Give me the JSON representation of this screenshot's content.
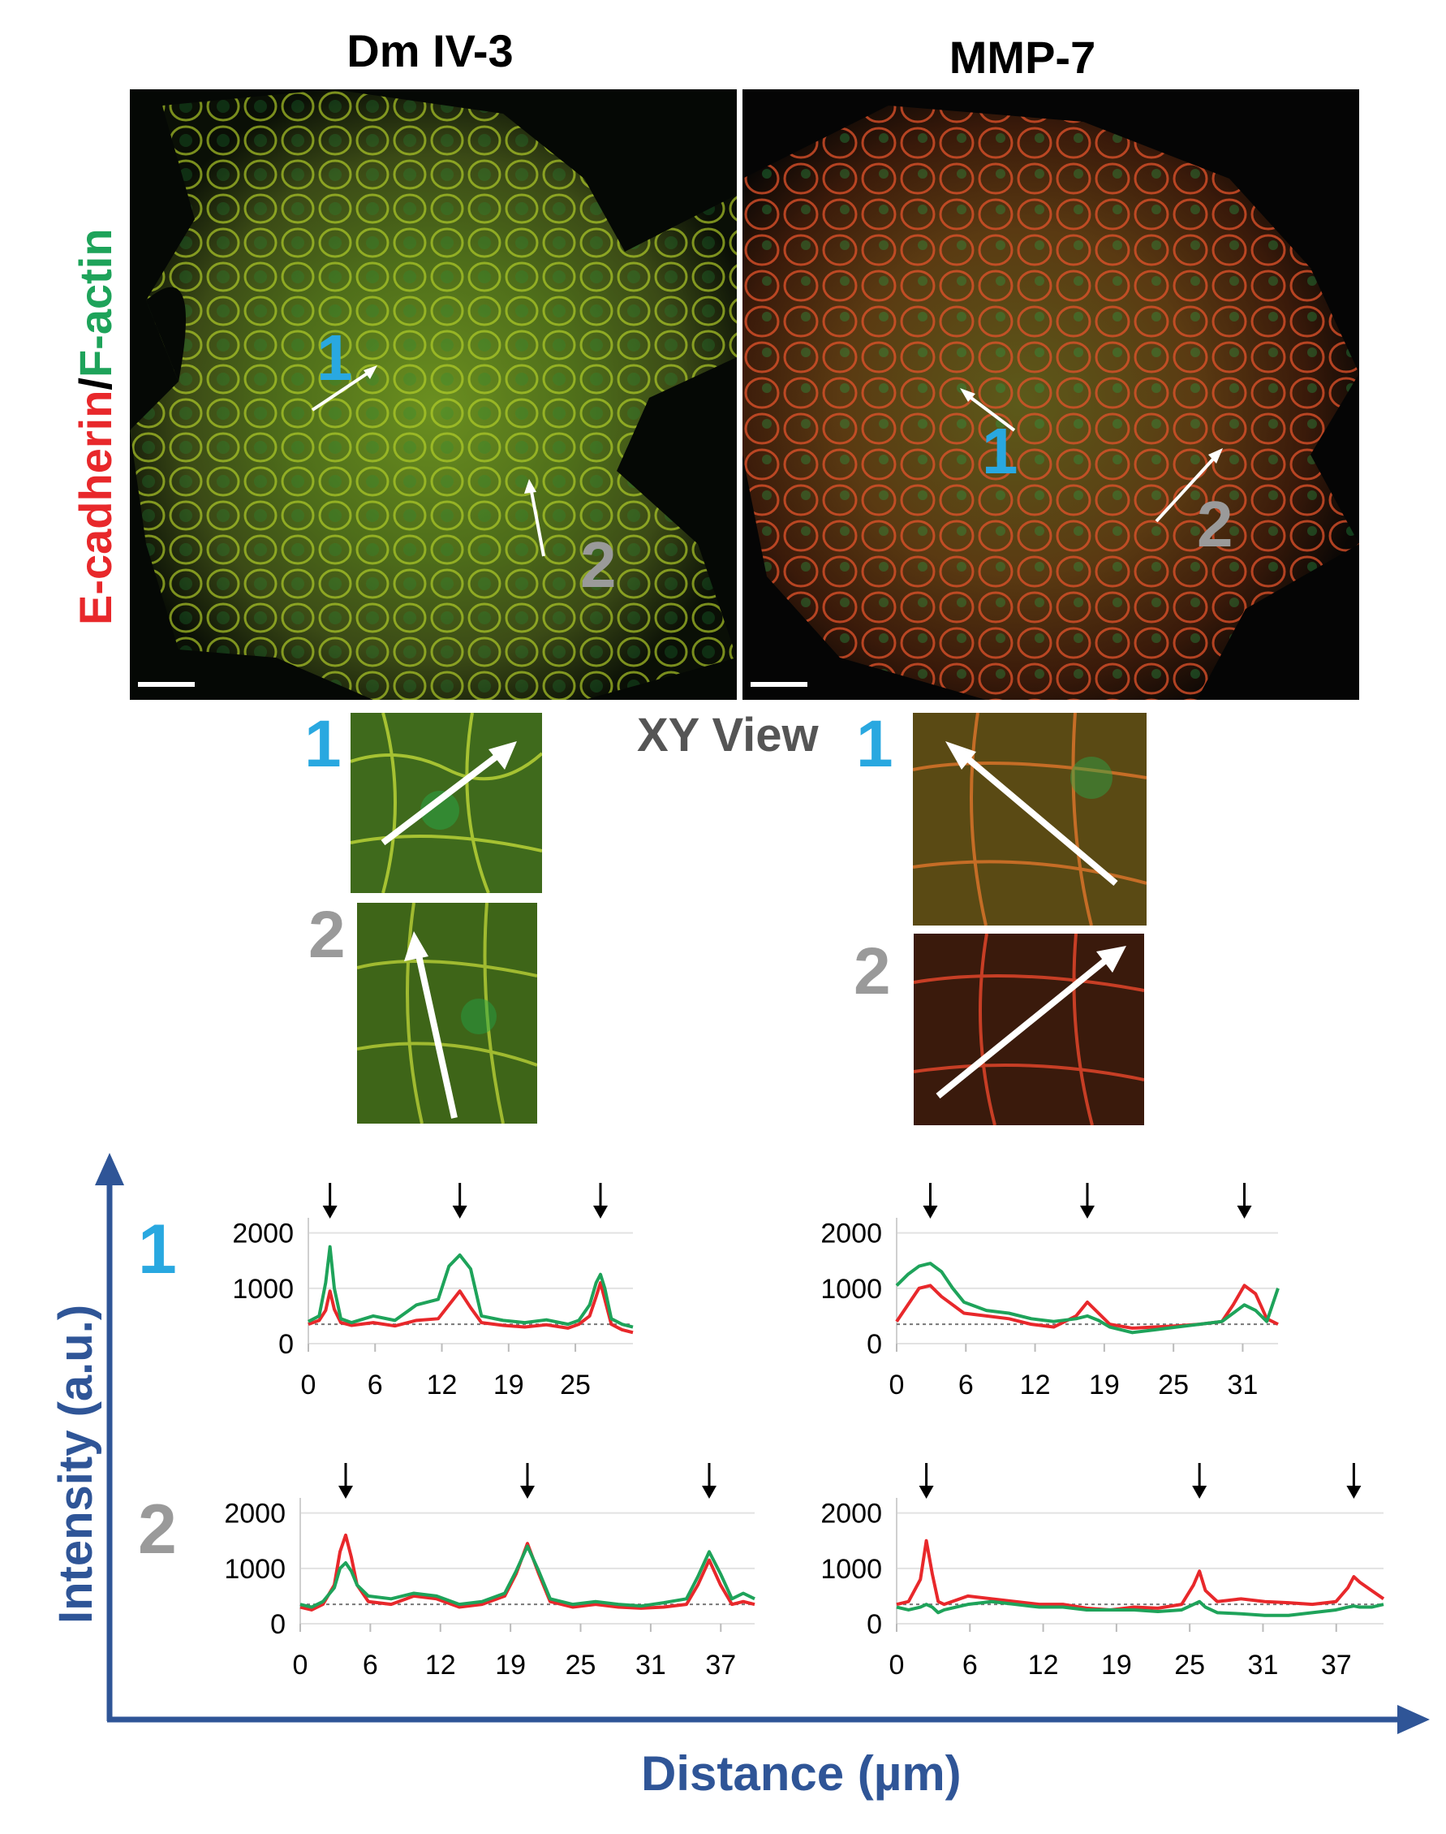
{
  "figure": {
    "left_title": "Dm IV-3",
    "right_title": "MMP-7",
    "vertical_label_red": "E-cadherin",
    "vertical_label_slash": "/",
    "vertical_label_green": "F-actin",
    "xy_view_label": "XY View",
    "markers": {
      "one": "1",
      "two": "2"
    },
    "intensity_axis_label": "Intensity (a.u.)",
    "distance_axis_label": "Distance (µm)",
    "colors": {
      "ecadherin": "#e8282b",
      "factin": "#1ea35a",
      "marker_one": "#29a8e0",
      "marker_two": "#9a9a9a",
      "axis": "#2f5597"
    }
  },
  "chart_data": [
    {
      "type": "line",
      "panel": "Dm IV-3 line 1",
      "ytick_labels": [
        "2000",
        "1000",
        "0"
      ],
      "xtick_labels": [
        "0",
        "6",
        "12",
        "19",
        "25"
      ],
      "ylim": [
        0,
        2200
      ],
      "xlim": [
        0,
        30
      ],
      "baseline": 350,
      "arrows_x": [
        2,
        14,
        27
      ],
      "series": [
        {
          "color": "#e8282b",
          "x": [
            0,
            1,
            1.6,
            2,
            2.4,
            3,
            4,
            6,
            8,
            10,
            12,
            13,
            14,
            15,
            16,
            18,
            20,
            22,
            24,
            25,
            26,
            26.6,
            27,
            27.4,
            28,
            29,
            30
          ],
          "y": [
            350,
            420,
            600,
            950,
            620,
            380,
            330,
            380,
            320,
            420,
            450,
            700,
            950,
            650,
            380,
            330,
            300,
            340,
            280,
            350,
            500,
            850,
            1100,
            800,
            350,
            250,
            200
          ]
        },
        {
          "color": "#1ea35a",
          "x": [
            0,
            1,
            1.6,
            2,
            2.4,
            3,
            4,
            6,
            8,
            10,
            12,
            13,
            14,
            15,
            16,
            18,
            20,
            22,
            24,
            25,
            26,
            26.6,
            27,
            27.4,
            28,
            29,
            30
          ],
          "y": [
            400,
            500,
            1100,
            1750,
            1000,
            450,
            380,
            500,
            420,
            700,
            800,
            1400,
            1600,
            1350,
            500,
            420,
            380,
            430,
            350,
            420,
            700,
            1100,
            1250,
            1000,
            450,
            350,
            300
          ]
        }
      ]
    },
    {
      "type": "line",
      "panel": "MMP-7 line 1",
      "ytick_labels": [
        "2000",
        "1000",
        "0"
      ],
      "xtick_labels": [
        "0",
        "6",
        "12",
        "19",
        "25",
        "31"
      ],
      "ylim": [
        0,
        2200
      ],
      "xlim": [
        0,
        34
      ],
      "baseline": 350,
      "arrows_x": [
        3,
        17,
        31
      ],
      "series": [
        {
          "color": "#e8282b",
          "x": [
            0,
            1,
            2,
            3,
            4,
            5,
            6,
            8,
            10,
            12,
            14,
            16,
            17,
            18,
            19,
            21,
            23,
            25,
            27,
            29,
            30,
            31,
            32,
            33,
            34
          ],
          "y": [
            400,
            700,
            1000,
            1050,
            850,
            700,
            550,
            500,
            450,
            350,
            300,
            500,
            750,
            550,
            350,
            280,
            300,
            320,
            350,
            400,
            700,
            1050,
            900,
            450,
            350
          ]
        },
        {
          "color": "#1ea35a",
          "x": [
            0,
            1,
            2,
            3,
            4,
            5,
            6,
            8,
            10,
            12,
            14,
            16,
            17,
            18,
            19,
            21,
            23,
            25,
            27,
            29,
            30,
            31,
            32,
            33,
            34
          ],
          "y": [
            1050,
            1250,
            1400,
            1450,
            1300,
            1000,
            750,
            600,
            550,
            450,
            400,
            450,
            500,
            420,
            300,
            200,
            250,
            300,
            350,
            400,
            550,
            700,
            600,
            400,
            1000
          ]
        }
      ]
    },
    {
      "type": "line",
      "panel": "Dm IV-3 line 2",
      "ytick_labels": [
        "2000",
        "1000",
        "0"
      ],
      "xtick_labels": [
        "0",
        "6",
        "12",
        "19",
        "25",
        "31",
        "37"
      ],
      "ylim": [
        0,
        2200
      ],
      "xlim": [
        0,
        40
      ],
      "baseline": 350,
      "arrows_x": [
        4,
        20,
        36
      ],
      "series": [
        {
          "color": "#e8282b",
          "x": [
            0,
            1,
            2,
            3,
            3.5,
            4,
            4.5,
            5,
            6,
            8,
            10,
            12,
            14,
            16,
            18,
            19,
            20,
            21,
            22,
            24,
            26,
            28,
            30,
            32,
            34,
            35,
            36,
            37,
            38,
            39,
            40
          ],
          "y": [
            300,
            250,
            350,
            700,
            1300,
            1600,
            1200,
            700,
            400,
            350,
            500,
            450,
            300,
            350,
            500,
            900,
            1450,
            900,
            400,
            300,
            350,
            300,
            280,
            300,
            350,
            700,
            1150,
            700,
            350,
            400,
            350
          ]
        },
        {
          "color": "#1ea35a",
          "x": [
            0,
            1,
            2,
            3,
            3.5,
            4,
            4.5,
            5,
            6,
            8,
            10,
            12,
            14,
            16,
            18,
            19,
            20,
            21,
            22,
            24,
            26,
            28,
            30,
            32,
            34,
            35,
            36,
            37,
            38,
            39,
            40
          ],
          "y": [
            350,
            300,
            400,
            650,
            1000,
            1100,
            950,
            700,
            500,
            450,
            550,
            500,
            350,
            400,
            550,
            950,
            1400,
            950,
            450,
            350,
            400,
            350,
            320,
            380,
            450,
            850,
            1300,
            900,
            450,
            550,
            450
          ]
        }
      ]
    },
    {
      "type": "line",
      "panel": "MMP-7 line 2",
      "ytick_labels": [
        "2000",
        "1000",
        "0"
      ],
      "xtick_labels": [
        "0",
        "6",
        "12",
        "19",
        "25",
        "31",
        "37"
      ],
      "ylim": [
        0,
        2200
      ],
      "xlim": [
        0,
        41
      ],
      "baseline": 350,
      "arrows_x": [
        2.5,
        25.5,
        38.5
      ],
      "series": [
        {
          "color": "#e8282b",
          "x": [
            0,
            1,
            2,
            2.5,
            3,
            3.5,
            4,
            6,
            8,
            10,
            12,
            14,
            16,
            18,
            20,
            22,
            24,
            25,
            25.5,
            26,
            27,
            29,
            31,
            33,
            35,
            37,
            38,
            38.5,
            39,
            40,
            41
          ],
          "y": [
            350,
            400,
            800,
            1500,
            900,
            400,
            350,
            500,
            450,
            400,
            350,
            350,
            280,
            250,
            300,
            280,
            350,
            700,
            950,
            600,
            400,
            450,
            400,
            380,
            350,
            400,
            650,
            850,
            750,
            600,
            450
          ]
        },
        {
          "color": "#1ea35a",
          "x": [
            0,
            1,
            2,
            2.5,
            3,
            3.5,
            4,
            6,
            8,
            10,
            12,
            14,
            16,
            18,
            20,
            22,
            24,
            25,
            25.5,
            26,
            27,
            29,
            31,
            33,
            35,
            37,
            38,
            38.5,
            39,
            40,
            41
          ],
          "y": [
            300,
            250,
            300,
            350,
            300,
            200,
            250,
            350,
            400,
            350,
            300,
            300,
            250,
            250,
            250,
            220,
            250,
            350,
            400,
            300,
            200,
            180,
            150,
            150,
            200,
            250,
            300,
            320,
            300,
            300,
            350
          ]
        }
      ]
    }
  ]
}
